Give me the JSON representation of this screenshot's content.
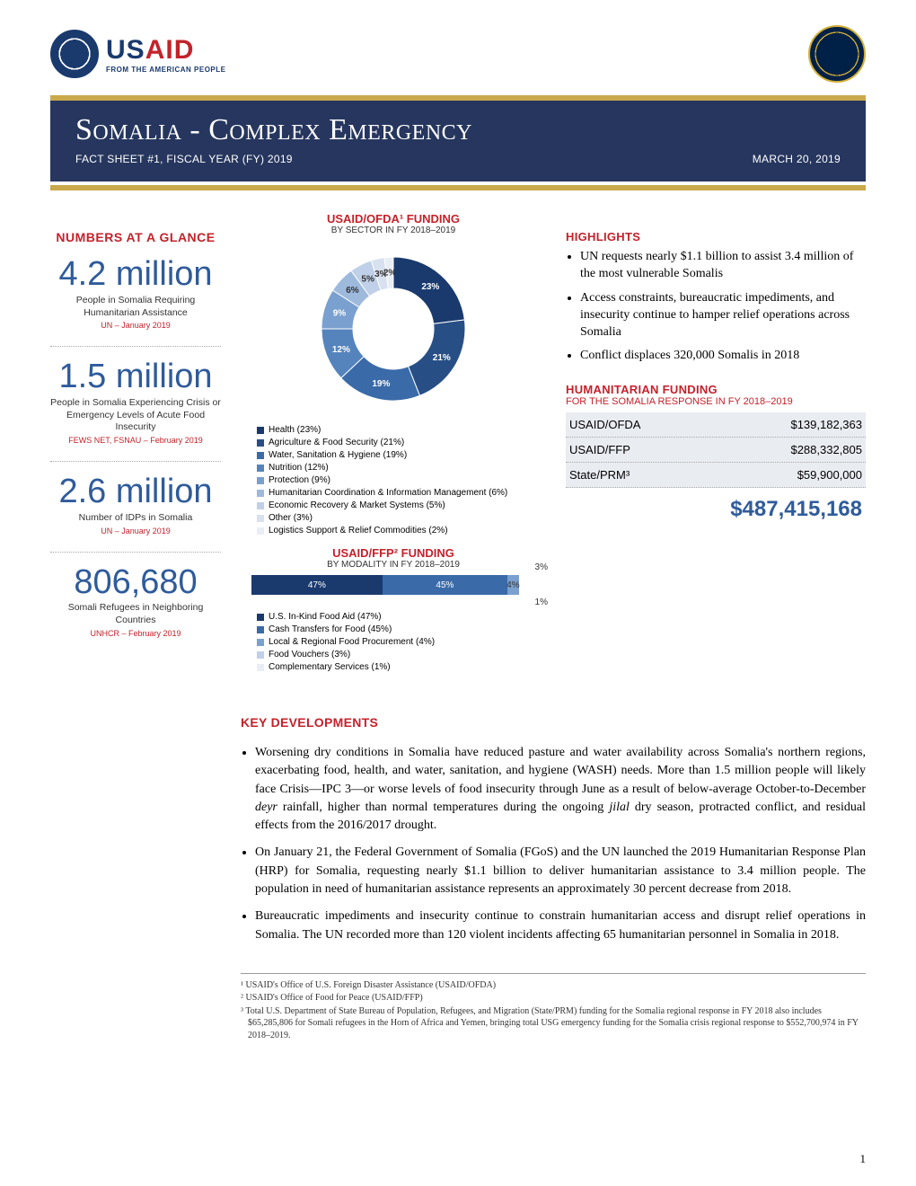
{
  "header": {
    "usaid_main": "USAID",
    "usaid_tag": "FROM THE AMERICAN PEOPLE"
  },
  "title": {
    "main": "Somalia - Complex Emergency",
    "subtitle_left": "FACT SHEET #1, FISCAL YEAR (FY) 2019",
    "subtitle_right": "MARCH 20, 2019"
  },
  "left": {
    "heading": "NUMBERS AT A GLANCE",
    "stats": [
      {
        "num": "4.2 million",
        "desc": "People in Somalia Requiring Humanitarian Assistance",
        "src": "UN – January 2019"
      },
      {
        "num": "1.5 million",
        "desc": "People in Somalia Experiencing Crisis or Emergency Levels of Acute Food Insecurity",
        "src": "FEWS NET, FSNAU – February 2019"
      },
      {
        "num": "2.6 million",
        "desc": "Number of IDPs in Somalia",
        "src": "UN – January 2019"
      },
      {
        "num": "806,680",
        "desc": "Somali Refugees in Neighboring Countries",
        "src": "UNHCR – February 2019"
      }
    ]
  },
  "donut": {
    "title": "USAID/OFDA¹ FUNDING",
    "sub": "BY SECTOR IN FY 2018–2019",
    "slices": [
      {
        "label": "Health (23%)",
        "pct": 23,
        "color": "#1a3a6e",
        "lab": "23%"
      },
      {
        "label": "Agriculture & Food Security (21%)",
        "pct": 21,
        "color": "#274f86",
        "lab": "21%"
      },
      {
        "label": "Water, Sanitation & Hygiene (19%)",
        "pct": 19,
        "color": "#3a6aa8",
        "lab": "19%"
      },
      {
        "label": "Nutrition (12%)",
        "pct": 12,
        "color": "#5584bd",
        "lab": "12%"
      },
      {
        "label": "Protection (9%)",
        "pct": 9,
        "color": "#7aa0cf",
        "lab": "9%"
      },
      {
        "label": "Humanitarian Coordination & Information Management (6%)",
        "pct": 6,
        "color": "#9db9dc",
        "lab": "6%"
      },
      {
        "label": "Economic Recovery & Market Systems (5%)",
        "pct": 5,
        "color": "#bfd0e8",
        "lab": "5%"
      },
      {
        "label": "Other (3%)",
        "pct": 3,
        "color": "#d7e1f0",
        "lab": "3%"
      },
      {
        "label": "Logistics Support & Relief Commodities  (2%)",
        "pct": 2,
        "color": "#e9eef6",
        "lab": "2%"
      }
    ]
  },
  "ffp": {
    "title": "USAID/FFP² FUNDING",
    "sub": "BY MODALITY IN FY 2018–2019",
    "segs": [
      {
        "label": "U.S. In-Kind Food Aid (47%)",
        "pct": 47,
        "color": "#1a3a6e",
        "lab": "47%"
      },
      {
        "label": "Cash Transfers for Food (45%)",
        "pct": 45,
        "color": "#3a6aa8",
        "lab": "45%"
      },
      {
        "label": "Local & Regional Food Procurement (4%)",
        "pct": 4,
        "color": "#7aa0cf",
        "lab": "4%"
      },
      {
        "label": "Food Vouchers (3%)",
        "pct": 3,
        "color": "#bfd0e8",
        "lab": "3%"
      },
      {
        "label": "Complementary Services (1%)",
        "pct": 1,
        "color": "#e9eef6",
        "lab": "1%"
      }
    ]
  },
  "right": {
    "highlights_title": "HIGHLIGHTS",
    "highlights": [
      "UN requests nearly $1.1 billion to assist 3.4 million of the most vulnerable Somalis",
      "Access constraints, bureaucratic impediments, and insecurity continue to hamper relief operations across Somalia",
      "Conflict displaces 320,000 Somalis in 2018"
    ],
    "hf_title": "HUMANITARIAN FUNDING",
    "hf_sub": "FOR THE SOMALIA RESPONSE IN FY 2018–2019",
    "funding": [
      {
        "src": "USAID/OFDA",
        "amt": "$139,182,363"
      },
      {
        "src": "USAID/FFP",
        "amt": "$288,332,805"
      },
      {
        "src": "State/PRM³",
        "amt": "$59,900,000"
      }
    ],
    "total": "$487,415,168"
  },
  "kd": {
    "title": "KEY DEVELOPMENTS",
    "items": [
      "Worsening dry conditions in Somalia have reduced pasture and water availability across Somalia's northern regions, exacerbating food, health, and water, sanitation, and hygiene (WASH) needs.  More than 1.5 million people will likely face Crisis—IPC 3—or worse levels of food insecurity through June as a result of below-average October-to-December <i>deyr</i> rainfall, higher than normal temperatures during the ongoing <i>jilal</i> dry season, protracted conflict, and residual effects from the 2016/2017 drought.",
      "On January 21, the Federal Government of Somalia (FGoS) and the UN launched the 2019 Humanitarian Response Plan (HRP) for Somalia, requesting nearly $1.1 billion to deliver humanitarian assistance to 3.4 million people.  The population in need of humanitarian assistance represents an approximately 30 percent decrease from 2018.",
      "Bureaucratic impediments and insecurity continue to constrain humanitarian access and disrupt relief operations in Somalia.  The UN recorded more than 120 violent incidents affecting 65 humanitarian personnel in Somalia in 2018."
    ]
  },
  "footnotes": [
    "¹ USAID's Office of U.S. Foreign Disaster Assistance (USAID/OFDA)",
    "² USAID's Office of Food for Peace (USAID/FFP)",
    "³ Total U.S. Department of State Bureau of Population, Refugees, and Migration (State/PRM) funding for the Somalia regional response in FY 2018 also includes $65,285,806 for Somali refugees in the Horn of Africa and Yemen, bringing total USG emergency funding for the Somalia crisis regional response to $552,700,974 in FY 2018–2019."
  ],
  "page_num": "1"
}
